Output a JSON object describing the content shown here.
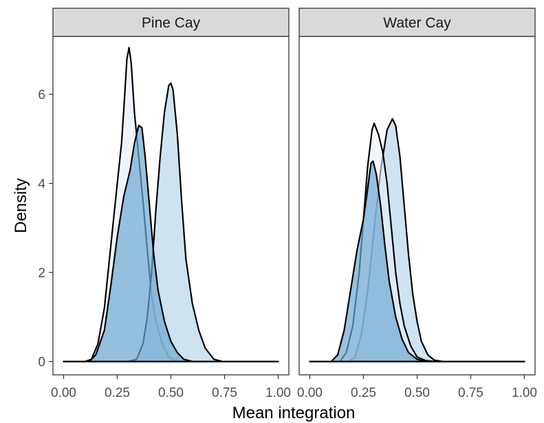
{
  "chart_data": {
    "type": "area",
    "xlabel": "Mean integration",
    "ylabel": "Density",
    "xlim": [
      0,
      1
    ],
    "ylim": [
      -0.3,
      7.3
    ],
    "x_ticks": [
      "0.00",
      "0.25",
      "0.50",
      "0.75",
      "1.00"
    ],
    "y_ticks": [
      "0",
      "2",
      "4",
      "6"
    ],
    "grid": false,
    "legend": "none",
    "colors": {
      "strip_fill": "#d9d9d9",
      "outline": "#000000",
      "fill_light": "#d8e7f3",
      "fill_mid": "#a6cbe3",
      "fill_dark": "#6ea8d1"
    },
    "panels": [
      {
        "title": "Pine Cay",
        "series": [
          {
            "fill": "#e8f0f8",
            "opacity": 0.75,
            "points": [
              [
                0,
                0
              ],
              [
                0.1,
                0
              ],
              [
                0.13,
                0.05
              ],
              [
                0.16,
                0.4
              ],
              [
                0.19,
                1.2
              ],
              [
                0.22,
                2.6
              ],
              [
                0.25,
                4.0
              ],
              [
                0.27,
                4.9
              ],
              [
                0.285,
                6.0
              ],
              [
                0.295,
                6.8
              ],
              [
                0.305,
                7.05
              ],
              [
                0.315,
                6.7
              ],
              [
                0.33,
                5.6
              ],
              [
                0.35,
                4.6
              ],
              [
                0.37,
                3.6
              ],
              [
                0.39,
                2.5
              ],
              [
                0.41,
                1.5
              ],
              [
                0.43,
                0.9
              ],
              [
                0.46,
                0.4
              ],
              [
                0.49,
                0.1
              ],
              [
                0.52,
                0.02
              ],
              [
                0.55,
                0
              ],
              [
                1,
                0
              ]
            ]
          },
          {
            "fill": "#b9d6ea",
            "opacity": 0.7,
            "points": [
              [
                0,
                0
              ],
              [
                0.3,
                0
              ],
              [
                0.34,
                0.05
              ],
              [
                0.37,
                0.4
              ],
              [
                0.39,
                1.0
              ],
              [
                0.41,
                2.0
              ],
              [
                0.43,
                3.4
              ],
              [
                0.45,
                4.6
              ],
              [
                0.47,
                5.6
              ],
              [
                0.49,
                6.2
              ],
              [
                0.5,
                6.25
              ],
              [
                0.51,
                6.1
              ],
              [
                0.53,
                5.1
              ],
              [
                0.55,
                3.6
              ],
              [
                0.57,
                2.3
              ],
              [
                0.6,
                1.3
              ],
              [
                0.63,
                0.7
              ],
              [
                0.66,
                0.3
              ],
              [
                0.7,
                0.05
              ],
              [
                0.74,
                0
              ],
              [
                1,
                0
              ]
            ]
          },
          {
            "fill": "#6ea8d1",
            "opacity": 0.7,
            "points": [
              [
                0,
                0
              ],
              [
                0.12,
                0
              ],
              [
                0.15,
                0.15
              ],
              [
                0.19,
                0.7
              ],
              [
                0.22,
                1.7
              ],
              [
                0.25,
                2.8
              ],
              [
                0.28,
                3.7
              ],
              [
                0.31,
                4.3
              ],
              [
                0.33,
                4.9
              ],
              [
                0.35,
                5.3
              ],
              [
                0.365,
                5.25
              ],
              [
                0.38,
                4.6
              ],
              [
                0.4,
                3.5
              ],
              [
                0.42,
                2.4
              ],
              [
                0.44,
                1.6
              ],
              [
                0.47,
                0.9
              ],
              [
                0.5,
                0.45
              ],
              [
                0.53,
                0.2
              ],
              [
                0.56,
                0.05
              ],
              [
                0.6,
                0
              ],
              [
                1,
                0
              ]
            ]
          }
        ]
      },
      {
        "title": "Water Cay",
        "series": [
          {
            "fill": "#b9d6ea",
            "opacity": 0.7,
            "points": [
              [
                0,
                0
              ],
              [
                0.18,
                0
              ],
              [
                0.21,
                0.1
              ],
              [
                0.24,
                0.6
              ],
              [
                0.27,
                1.6
              ],
              [
                0.3,
                3.0
              ],
              [
                0.33,
                4.3
              ],
              [
                0.36,
                5.2
              ],
              [
                0.385,
                5.45
              ],
              [
                0.4,
                5.3
              ],
              [
                0.42,
                4.6
              ],
              [
                0.44,
                3.5
              ],
              [
                0.46,
                2.4
              ],
              [
                0.48,
                1.5
              ],
              [
                0.5,
                0.9
              ],
              [
                0.52,
                0.45
              ],
              [
                0.55,
                0.15
              ],
              [
                0.58,
                0.03
              ],
              [
                0.62,
                0
              ],
              [
                1,
                0
              ]
            ]
          },
          {
            "fill": "#e8f0f8",
            "opacity": 0.6,
            "points": [
              [
                0,
                0
              ],
              [
                0.14,
                0
              ],
              [
                0.17,
                0.2
              ],
              [
                0.2,
                0.8
              ],
              [
                0.23,
                2.0
              ],
              [
                0.25,
                3.2
              ],
              [
                0.27,
                4.4
              ],
              [
                0.29,
                5.2
              ],
              [
                0.3,
                5.35
              ],
              [
                0.32,
                5.1
              ],
              [
                0.34,
                4.7
              ],
              [
                0.36,
                4.0
              ],
              [
                0.38,
                3.0
              ],
              [
                0.4,
                2.0
              ],
              [
                0.42,
                1.3
              ],
              [
                0.44,
                0.8
              ],
              [
                0.47,
                0.35
              ],
              [
                0.5,
                0.1
              ],
              [
                0.54,
                0.02
              ],
              [
                0.58,
                0
              ],
              [
                1,
                0
              ]
            ]
          },
          {
            "fill": "#6ea8d1",
            "opacity": 0.7,
            "points": [
              [
                0,
                0
              ],
              [
                0.1,
                0
              ],
              [
                0.13,
                0.15
              ],
              [
                0.16,
                0.7
              ],
              [
                0.19,
                1.6
              ],
              [
                0.22,
                2.5
              ],
              [
                0.25,
                3.2
              ],
              [
                0.27,
                3.9
              ],
              [
                0.285,
                4.45
              ],
              [
                0.295,
                4.5
              ],
              [
                0.31,
                4.2
              ],
              [
                0.33,
                3.5
              ],
              [
                0.35,
                2.6
              ],
              [
                0.37,
                1.8
              ],
              [
                0.4,
                1.0
              ],
              [
                0.43,
                0.5
              ],
              [
                0.46,
                0.2
              ],
              [
                0.5,
                0.05
              ],
              [
                0.54,
                0
              ],
              [
                1,
                0
              ]
            ]
          }
        ]
      }
    ]
  }
}
